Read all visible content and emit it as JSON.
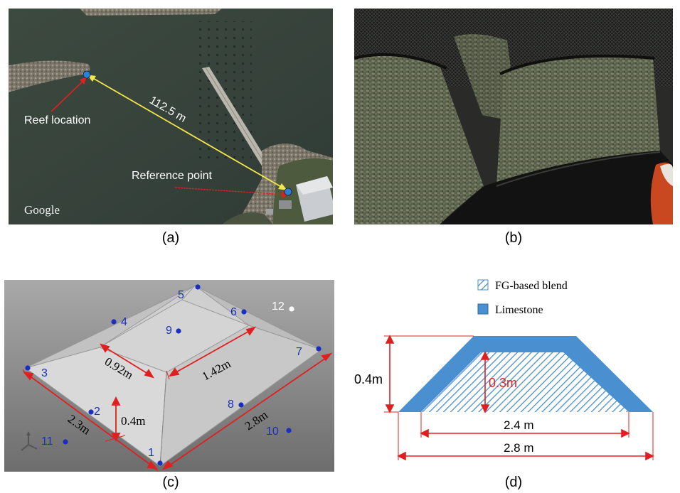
{
  "panel_a": {
    "caption": "(a)",
    "distance_label": "112.5 m",
    "reef_label": "Reef location",
    "reference_label": "Reference point",
    "watermark": "Google"
  },
  "panel_b": {
    "caption": "(b)"
  },
  "panel_c": {
    "caption": "(c)",
    "points": [
      "1",
      "2",
      "3",
      "4",
      "5",
      "6",
      "7",
      "8",
      "9",
      "10",
      "11",
      "12"
    ],
    "dim_width": "2.3m",
    "dim_length": "2.8m",
    "dim_height": "0.4m",
    "dim_top_width": "0.92m",
    "dim_top_length": "1.42m",
    "point_color": "#1a2fbf",
    "reference_color": "#ffffff"
  },
  "panel_d": {
    "caption": "(d)",
    "legend": [
      {
        "label": "FG-based blend",
        "pattern": "hatched-blue"
      },
      {
        "label": "Limestone",
        "color": "#4a8fd0"
      }
    ],
    "dim_total_height": "0.4m",
    "dim_inner_height": "0.3m",
    "dim_inner_base": "2.4 m",
    "dim_outer_base": "2.8 m",
    "limestone_color": "#4a8fd0",
    "dimension_color": "#e02020"
  }
}
